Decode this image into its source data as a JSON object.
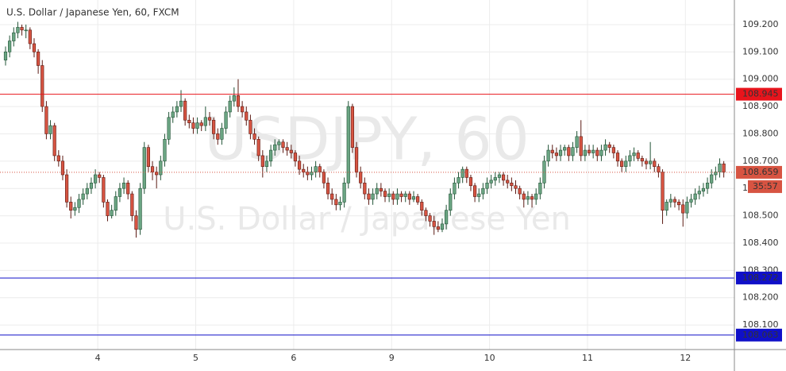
{
  "chart_data": {
    "type": "candlestick",
    "title": "U.S. Dollar / Japanese Yen, 60, FXCM",
    "watermark": "USDJPY, 60",
    "watermark_subtitle": "U.S. Dollar / Japanese Yen",
    "days": [
      "4",
      "5",
      "6",
      "9",
      "10",
      "11",
      "12"
    ],
    "ylim": [
      108.01,
      109.29
    ],
    "yticks": [
      {
        "value": 108.1,
        "label": "108.100"
      },
      {
        "value": 108.2,
        "label": "108.200"
      },
      {
        "value": 108.3,
        "label": "108.300"
      },
      {
        "value": 108.4,
        "label": "108.400"
      },
      {
        "value": 108.5,
        "label": "108.500"
      },
      {
        "value": 108.6,
        "label": "108.600"
      },
      {
        "value": 108.7,
        "label": "108.700"
      },
      {
        "value": 108.8,
        "label": "108.800"
      },
      {
        "value": 108.9,
        "label": "108.900"
      },
      {
        "value": 109.0,
        "label": "109.000"
      },
      {
        "value": 109.1,
        "label": "109.100"
      },
      {
        "value": 109.2,
        "label": "109.200"
      }
    ],
    "grid": true,
    "up_color": "#6ba583",
    "down_color": "#d75442",
    "up_border": "#225437",
    "down_border": "#5b1a13",
    "levels": [
      {
        "value": 108.945,
        "color": "#e8141c"
      },
      {
        "value": 108.272,
        "color": "#1010c8"
      },
      {
        "value": 108.063,
        "color": "#1010c8"
      }
    ],
    "current_price": 108.659,
    "current_color": "#d75442",
    "countdown": "35:57",
    "candles": [
      [
        109.07,
        109.12,
        109.05,
        109.1
      ],
      [
        109.1,
        109.16,
        109.08,
        109.14
      ],
      [
        109.14,
        109.19,
        109.12,
        109.17
      ],
      [
        109.17,
        109.21,
        109.15,
        109.19
      ],
      [
        109.19,
        109.2,
        109.16,
        109.18
      ],
      [
        109.18,
        109.2,
        109.15,
        109.18
      ],
      [
        109.18,
        109.19,
        109.11,
        109.13
      ],
      [
        109.13,
        109.15,
        109.08,
        109.1
      ],
      [
        109.1,
        109.11,
        109.02,
        109.05
      ],
      [
        109.05,
        109.07,
        108.88,
        108.9
      ],
      [
        108.9,
        108.92,
        108.78,
        108.8
      ],
      [
        108.8,
        108.85,
        108.78,
        108.83
      ],
      [
        108.83,
        108.84,
        108.7,
        108.72
      ],
      [
        108.72,
        108.74,
        108.68,
        108.7
      ],
      [
        108.7,
        108.72,
        108.63,
        108.65
      ],
      [
        108.65,
        108.67,
        108.53,
        108.55
      ],
      [
        108.55,
        108.57,
        108.49,
        108.52
      ],
      [
        108.52,
        108.55,
        108.5,
        108.53
      ],
      [
        108.53,
        108.58,
        108.51,
        108.56
      ],
      [
        108.56,
        108.6,
        108.54,
        108.58
      ],
      [
        108.58,
        108.62,
        108.56,
        108.6
      ],
      [
        108.6,
        108.64,
        108.58,
        108.62
      ],
      [
        108.62,
        108.67,
        108.6,
        108.65
      ],
      [
        108.65,
        108.66,
        108.62,
        108.64
      ],
      [
        108.64,
        108.65,
        108.53,
        108.55
      ],
      [
        108.55,
        108.56,
        108.48,
        108.5
      ],
      [
        108.5,
        108.54,
        108.49,
        108.52
      ],
      [
        108.52,
        108.59,
        108.5,
        108.57
      ],
      [
        108.57,
        108.62,
        108.55,
        108.6
      ],
      [
        108.6,
        108.64,
        108.58,
        108.62
      ],
      [
        108.62,
        108.63,
        108.56,
        108.58
      ],
      [
        108.58,
        108.59,
        108.48,
        108.5
      ],
      [
        108.5,
        108.52,
        108.42,
        108.45
      ],
      [
        108.45,
        108.62,
        108.43,
        108.6
      ],
      [
        108.6,
        108.77,
        108.58,
        108.75
      ],
      [
        108.75,
        108.76,
        108.66,
        108.68
      ],
      [
        108.68,
        108.7,
        108.63,
        108.66
      ],
      [
        108.66,
        108.68,
        108.6,
        108.65
      ],
      [
        108.65,
        108.72,
        108.63,
        108.7
      ],
      [
        108.7,
        108.8,
        108.68,
        108.78
      ],
      [
        108.78,
        108.88,
        108.76,
        108.86
      ],
      [
        108.86,
        108.9,
        108.84,
        108.88
      ],
      [
        108.88,
        108.92,
        108.86,
        108.9
      ],
      [
        108.9,
        108.96,
        108.88,
        108.92
      ],
      [
        108.92,
        108.93,
        108.83,
        108.85
      ],
      [
        108.85,
        108.87,
        108.82,
        108.84
      ],
      [
        108.84,
        108.86,
        108.8,
        108.82
      ],
      [
        108.82,
        108.86,
        108.8,
        108.84
      ],
      [
        108.84,
        108.85,
        108.81,
        108.83
      ],
      [
        108.83,
        108.9,
        108.81,
        108.86
      ],
      [
        108.86,
        108.88,
        108.83,
        108.85
      ],
      [
        108.85,
        108.86,
        108.78,
        108.8
      ],
      [
        108.8,
        108.82,
        108.76,
        108.78
      ],
      [
        108.78,
        108.84,
        108.76,
        108.82
      ],
      [
        108.82,
        108.9,
        108.8,
        108.88
      ],
      [
        108.88,
        108.94,
        108.86,
        108.92
      ],
      [
        108.92,
        108.97,
        108.9,
        108.94
      ],
      [
        108.94,
        109.0,
        108.88,
        108.9
      ],
      [
        108.9,
        108.92,
        108.86,
        108.88
      ],
      [
        108.88,
        108.9,
        108.83,
        108.85
      ],
      [
        108.85,
        108.87,
        108.78,
        108.8
      ],
      [
        108.8,
        108.82,
        108.76,
        108.78
      ],
      [
        108.78,
        108.79,
        108.7,
        108.72
      ],
      [
        108.72,
        108.74,
        108.64,
        108.68
      ],
      [
        108.68,
        108.72,
        108.66,
        108.7
      ],
      [
        108.7,
        108.76,
        108.68,
        108.74
      ],
      [
        108.74,
        108.78,
        108.72,
        108.76
      ],
      [
        108.76,
        108.78,
        108.74,
        108.77
      ],
      [
        108.77,
        108.78,
        108.73,
        108.75
      ],
      [
        108.75,
        108.77,
        108.72,
        108.74
      ],
      [
        108.74,
        108.76,
        108.71,
        108.73
      ],
      [
        108.73,
        108.74,
        108.68,
        108.7
      ],
      [
        108.7,
        108.72,
        108.65,
        108.67
      ],
      [
        108.67,
        108.69,
        108.64,
        108.66
      ],
      [
        108.66,
        108.68,
        108.63,
        108.65
      ],
      [
        108.65,
        108.68,
        108.63,
        108.66
      ],
      [
        108.66,
        108.7,
        108.64,
        108.68
      ],
      [
        108.68,
        108.69,
        108.64,
        108.66
      ],
      [
        108.66,
        108.67,
        108.6,
        108.62
      ],
      [
        108.62,
        108.64,
        108.56,
        108.58
      ],
      [
        108.58,
        108.6,
        108.54,
        108.56
      ],
      [
        108.56,
        108.58,
        108.52,
        108.54
      ],
      [
        108.54,
        108.57,
        108.52,
        108.55
      ],
      [
        108.55,
        108.64,
        108.53,
        108.62
      ],
      [
        108.62,
        108.92,
        108.6,
        108.9
      ],
      [
        108.9,
        108.91,
        108.73,
        108.75
      ],
      [
        108.75,
        108.77,
        108.64,
        108.66
      ],
      [
        108.66,
        108.68,
        108.6,
        108.62
      ],
      [
        108.62,
        108.64,
        108.56,
        108.58
      ],
      [
        108.58,
        108.6,
        108.54,
        108.56
      ],
      [
        108.56,
        108.6,
        108.54,
        108.58
      ],
      [
        108.58,
        108.62,
        108.56,
        108.6
      ],
      [
        108.6,
        108.62,
        108.57,
        108.59
      ],
      [
        108.59,
        108.6,
        108.55,
        108.57
      ],
      [
        108.57,
        108.6,
        108.55,
        108.58
      ],
      [
        108.58,
        108.59,
        108.54,
        108.56
      ],
      [
        108.56,
        108.6,
        108.54,
        108.58
      ],
      [
        108.58,
        108.59,
        108.55,
        108.57
      ],
      [
        108.57,
        108.59,
        108.55,
        108.58
      ],
      [
        108.58,
        108.59,
        108.54,
        108.56
      ],
      [
        108.56,
        108.59,
        108.55,
        108.57
      ],
      [
        108.57,
        108.58,
        108.54,
        108.55
      ],
      [
        108.55,
        108.56,
        108.5,
        108.52
      ],
      [
        108.52,
        108.53,
        108.48,
        108.5
      ],
      [
        108.5,
        108.51,
        108.46,
        108.48
      ],
      [
        108.48,
        108.5,
        108.43,
        108.46
      ],
      [
        108.46,
        108.48,
        108.44,
        108.45
      ],
      [
        108.45,
        108.49,
        108.44,
        108.47
      ],
      [
        108.47,
        108.54,
        108.45,
        108.52
      ],
      [
        108.52,
        108.6,
        108.5,
        108.58
      ],
      [
        108.58,
        108.64,
        108.56,
        108.62
      ],
      [
        108.62,
        108.66,
        108.6,
        108.64
      ],
      [
        108.64,
        108.68,
        108.62,
        108.67
      ],
      [
        108.67,
        108.68,
        108.62,
        108.64
      ],
      [
        108.64,
        108.65,
        108.59,
        108.61
      ],
      [
        108.61,
        108.62,
        108.55,
        108.57
      ],
      [
        108.57,
        108.6,
        108.55,
        108.58
      ],
      [
        108.58,
        108.62,
        108.56,
        108.6
      ],
      [
        108.6,
        108.64,
        108.58,
        108.62
      ],
      [
        108.62,
        108.65,
        108.6,
        108.63
      ],
      [
        108.63,
        108.66,
        108.61,
        108.64
      ],
      [
        108.64,
        108.66,
        108.62,
        108.65
      ],
      [
        108.65,
        108.66,
        108.61,
        108.63
      ],
      [
        108.63,
        108.65,
        108.6,
        108.62
      ],
      [
        108.62,
        108.64,
        108.59,
        108.61
      ],
      [
        108.61,
        108.63,
        108.58,
        108.6
      ],
      [
        108.6,
        108.61,
        108.56,
        108.58
      ],
      [
        108.58,
        108.59,
        108.53,
        108.56
      ],
      [
        108.56,
        108.59,
        108.54,
        108.57
      ],
      [
        108.57,
        108.58,
        108.53,
        108.56
      ],
      [
        108.56,
        108.6,
        108.54,
        108.58
      ],
      [
        108.58,
        108.64,
        108.56,
        108.62
      ],
      [
        108.62,
        108.72,
        108.6,
        108.7
      ],
      [
        108.7,
        108.76,
        108.68,
        108.74
      ],
      [
        108.74,
        108.76,
        108.71,
        108.73
      ],
      [
        108.73,
        108.75,
        108.7,
        108.72
      ],
      [
        108.72,
        108.76,
        108.7,
        108.74
      ],
      [
        108.74,
        108.76,
        108.72,
        108.75
      ],
      [
        108.75,
        108.76,
        108.7,
        108.72
      ],
      [
        108.72,
        108.77,
        108.7,
        108.75
      ],
      [
        108.75,
        108.81,
        108.73,
        108.79
      ],
      [
        108.79,
        108.85,
        108.7,
        108.72
      ],
      [
        108.72,
        108.76,
        108.7,
        108.74
      ],
      [
        108.74,
        108.76,
        108.72,
        108.73
      ],
      [
        108.73,
        108.76,
        108.71,
        108.74
      ],
      [
        108.74,
        108.75,
        108.7,
        108.72
      ],
      [
        108.72,
        108.76,
        108.7,
        108.74
      ],
      [
        108.74,
        108.78,
        108.72,
        108.76
      ],
      [
        108.76,
        108.77,
        108.73,
        108.75
      ],
      [
        108.75,
        108.76,
        108.71,
        108.73
      ],
      [
        108.73,
        108.74,
        108.68,
        108.7
      ],
      [
        108.7,
        108.71,
        108.66,
        108.68
      ],
      [
        108.68,
        108.72,
        108.66,
        108.7
      ],
      [
        108.7,
        108.74,
        108.68,
        108.72
      ],
      [
        108.72,
        108.75,
        108.7,
        108.73
      ],
      [
        108.73,
        108.74,
        108.7,
        108.71
      ],
      [
        108.71,
        108.72,
        108.68,
        108.7
      ],
      [
        108.7,
        108.71,
        108.67,
        108.69
      ],
      [
        108.69,
        108.77,
        108.67,
        108.7
      ],
      [
        108.7,
        108.71,
        108.66,
        108.68
      ],
      [
        108.68,
        108.69,
        108.64,
        108.66
      ],
      [
        108.66,
        108.67,
        108.47,
        108.52
      ],
      [
        108.52,
        108.56,
        108.5,
        108.55
      ],
      [
        108.55,
        108.58,
        108.53,
        108.56
      ],
      [
        108.56,
        108.57,
        108.53,
        108.55
      ],
      [
        108.55,
        108.56,
        108.52,
        108.54
      ],
      [
        108.54,
        108.56,
        108.46,
        108.51
      ],
      [
        108.51,
        108.57,
        108.49,
        108.55
      ],
      [
        108.55,
        108.58,
        108.53,
        108.56
      ],
      [
        108.56,
        108.6,
        108.54,
        108.58
      ],
      [
        108.58,
        108.61,
        108.56,
        108.59
      ],
      [
        108.59,
        108.62,
        108.57,
        108.6
      ],
      [
        108.6,
        108.64,
        108.58,
        108.62
      ],
      [
        108.62,
        108.67,
        108.6,
        108.65
      ],
      [
        108.65,
        108.68,
        108.63,
        108.66
      ],
      [
        108.66,
        108.71,
        108.64,
        108.69
      ],
      [
        108.69,
        108.7,
        108.64,
        108.66
      ]
    ]
  }
}
